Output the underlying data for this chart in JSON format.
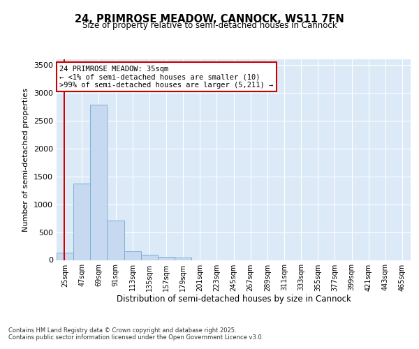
{
  "title": "24, PRIMROSE MEADOW, CANNOCK, WS11 7FN",
  "subtitle": "Size of property relative to semi-detached houses in Cannock",
  "xlabel": "Distribution of semi-detached houses by size in Cannock",
  "ylabel": "Number of semi-detached properties",
  "bar_color": "#c6d9f0",
  "bar_edge_color": "#7bafd4",
  "background_color": "#dce9f7",
  "grid_color": "#ffffff",
  "bins": [
    "25sqm",
    "47sqm",
    "69sqm",
    "91sqm",
    "113sqm",
    "135sqm",
    "157sqm",
    "179sqm",
    "201sqm",
    "223sqm",
    "245sqm",
    "267sqm",
    "289sqm",
    "311sqm",
    "333sqm",
    "355sqm",
    "377sqm",
    "399sqm",
    "421sqm",
    "443sqm",
    "465sqm"
  ],
  "values": [
    130,
    1370,
    2780,
    710,
    155,
    100,
    60,
    45,
    0,
    0,
    0,
    0,
    0,
    0,
    0,
    0,
    0,
    0,
    0,
    0,
    0
  ],
  "ylim": [
    0,
    3600
  ],
  "yticks": [
    0,
    500,
    1000,
    1500,
    2000,
    2500,
    3000,
    3500
  ],
  "property_sqm": 35,
  "annotation_title": "24 PRIMROSE MEADOW: 35sqm",
  "annotation_line1": "← <1% of semi-detached houses are smaller (10)",
  "annotation_line2": ">99% of semi-detached houses are larger (5,211) →",
  "red_line_color": "#cc0000",
  "annotation_box_edge": "#cc0000",
  "footer_line1": "Contains HM Land Registry data © Crown copyright and database right 2025.",
  "footer_line2": "Contains public sector information licensed under the Open Government Licence v3.0."
}
